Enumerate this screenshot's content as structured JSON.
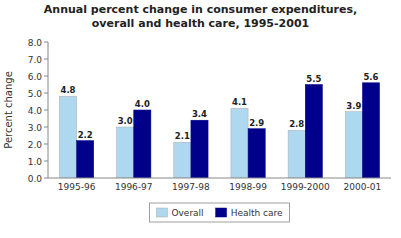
{
  "chart_data": {
    "type": "bar",
    "title": "Annual percent change in consumer expenditures,\noverall and health care, 1995-2001",
    "ylabel": "Percent change",
    "categories": [
      "1995-96",
      "1996-97",
      "1997-98",
      "1998-99",
      "1999-2000",
      "2000-01"
    ],
    "series": [
      {
        "name": "Overall",
        "color": "#add8f0",
        "values": [
          4.8,
          3.0,
          2.1,
          4.1,
          2.8,
          3.9
        ],
        "value_labels": [
          "4.8",
          "3.0",
          "2.1",
          "4.1",
          "2.8",
          "3.9"
        ]
      },
      {
        "name": "Health care",
        "color": "#00008b",
        "values": [
          2.2,
          4.0,
          3.4,
          2.9,
          5.5,
          5.6
        ],
        "value_labels": [
          "2.2",
          "4.0",
          "3.4",
          "2.9",
          "5.5",
          "5.6"
        ]
      }
    ],
    "ylim": [
      0.0,
      8.0
    ],
    "yticks": [
      {
        "value": 0,
        "label": "0.0"
      },
      {
        "value": 1,
        "label": "1.0"
      },
      {
        "value": 2,
        "label": "2.0"
      },
      {
        "value": 3,
        "label": "3.0"
      },
      {
        "value": 4,
        "label": "4.0"
      },
      {
        "value": 5,
        "label": "5.0"
      },
      {
        "value": 6,
        "label": "6.0"
      },
      {
        "value": 7,
        "label": "7.0"
      },
      {
        "value": 8,
        "label": "8.0"
      }
    ],
    "data_labels": true,
    "legend": "bottom",
    "grid": false
  }
}
